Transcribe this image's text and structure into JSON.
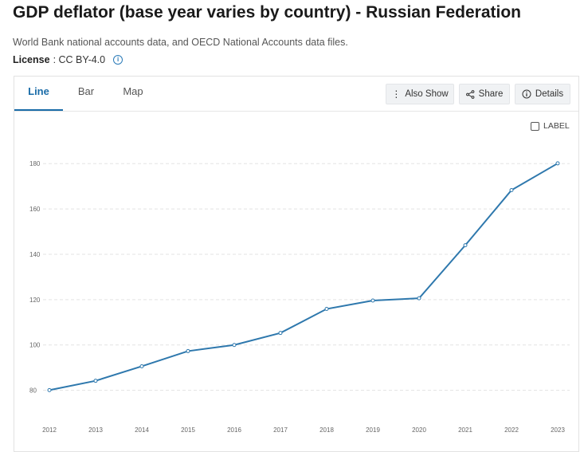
{
  "header": {
    "title": "GDP deflator (base year varies by country) - Russian Federation",
    "source": "World Bank national accounts data, and OECD National Accounts data files.",
    "license_label": "License",
    "license_value": " : CC BY-4.0"
  },
  "tabs": [
    {
      "label": "Line",
      "active": true
    },
    {
      "label": "Bar",
      "active": false
    },
    {
      "label": "Map",
      "active": false
    }
  ],
  "toolbar": {
    "also_show_label": "Also Show",
    "share_label": "Share",
    "details_label": "Details"
  },
  "label_toggle": {
    "text": "LABEL",
    "checked": false
  },
  "colors": {
    "line": "#2e78ad",
    "accent": "#1a6ca8",
    "grid": "#e3e3e3"
  },
  "chart_data": {
    "type": "line",
    "title": "",
    "xlabel": "",
    "ylabel": "",
    "x": [
      "2012",
      "2013",
      "2014",
      "2015",
      "2016",
      "2017",
      "2018",
      "2019",
      "2020",
      "2021",
      "2022",
      "2023"
    ],
    "series": [
      {
        "values": [
          80.1,
          84.2,
          90.6,
          97.3,
          100.0,
          105.3,
          115.9,
          119.6,
          120.6,
          144.0,
          168.3,
          180.1
        ]
      }
    ],
    "yticks": [
      80,
      100,
      120,
      140,
      160,
      180
    ],
    "ylim": [
      76,
      185
    ],
    "grid": true,
    "legend": "none"
  }
}
